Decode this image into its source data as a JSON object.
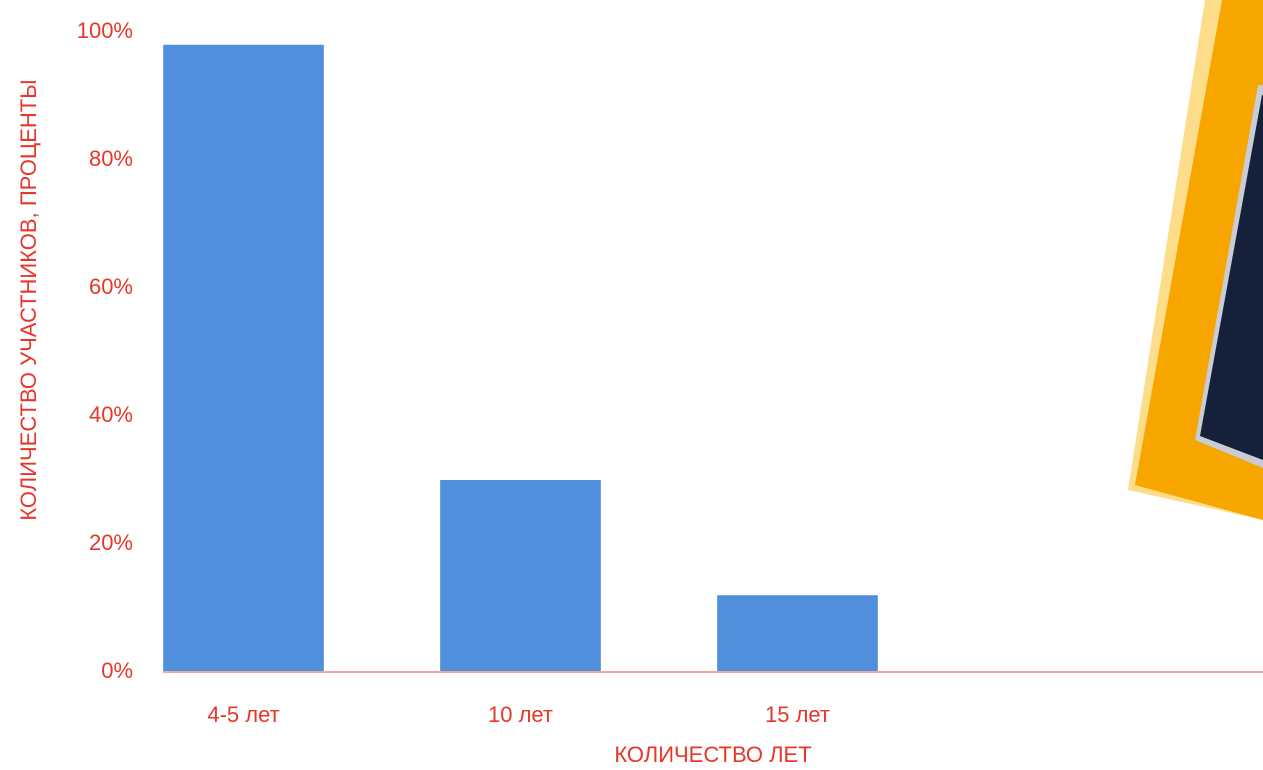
{
  "chart_data": {
    "type": "bar",
    "x_label": "КОЛИЧЕСТВО ЛЕТ",
    "y_label": "КОЛИЧЕСТВО УЧАСТНИКОВ, ПРОЦЕНТЫ",
    "categories": [
      "4-5 лет",
      "10 лет",
      "15 лет"
    ],
    "values": [
      98,
      30,
      12
    ],
    "color": "#4f8fdb",
    "ylim": [
      0,
      100
    ],
    "yticks": [
      {
        "value": 0,
        "label": "0%"
      },
      {
        "value": 20,
        "label": "20%"
      },
      {
        "value": 40,
        "label": "40%"
      },
      {
        "value": 60,
        "label": "60%"
      },
      {
        "value": 80,
        "label": "80%"
      },
      {
        "value": 100,
        "label": "100%"
      }
    ],
    "grid": false
  }
}
